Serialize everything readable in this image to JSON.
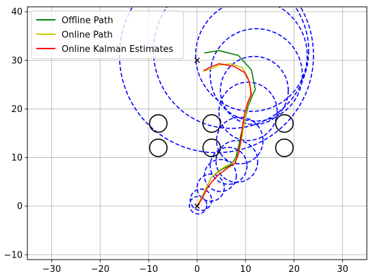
{
  "chart_data": {
    "type": "line",
    "xlim": [
      -35,
      35
    ],
    "ylim": [
      -11,
      41
    ],
    "x_ticks": [
      -30,
      -20,
      -10,
      0,
      10,
      20,
      30
    ],
    "y_ticks": [
      -10,
      0,
      10,
      20,
      30,
      40
    ],
    "x_tick_labels": [
      "−30",
      "−20",
      "−10",
      "0",
      "10",
      "20",
      "30"
    ],
    "y_tick_labels": [
      "−10",
      "0",
      "10",
      "20",
      "30",
      "40"
    ],
    "grid": true,
    "legend_position": "upper-left",
    "series": [
      {
        "name": "Offline Path",
        "color": "#008000",
        "points": [
          [
            0,
            0
          ],
          [
            1,
            2
          ],
          [
            2,
            4
          ],
          [
            3,
            6
          ],
          [
            5,
            7.5
          ],
          [
            7,
            8.5
          ],
          [
            8,
            10
          ],
          [
            8.5,
            12
          ],
          [
            9,
            14.5
          ],
          [
            9.8,
            17.5
          ],
          [
            10.5,
            20.5
          ],
          [
            11.5,
            23
          ],
          [
            12,
            24
          ],
          [
            11.2,
            28
          ],
          [
            8.5,
            31
          ],
          [
            4.5,
            32
          ],
          [
            1.5,
            31.5
          ]
        ]
      },
      {
        "name": "Online Path",
        "color": "#c8c800",
        "points": [
          [
            0,
            0
          ],
          [
            1,
            2
          ],
          [
            2,
            4
          ],
          [
            3,
            6
          ],
          [
            4.5,
            7.3
          ],
          [
            6,
            8.3
          ],
          [
            7.5,
            9
          ],
          [
            8.3,
            10.2
          ],
          [
            8.8,
            12
          ],
          [
            9.3,
            14.5
          ],
          [
            9.8,
            17.5
          ],
          [
            10.2,
            20
          ],
          [
            11,
            22.5
          ],
          [
            11,
            24
          ],
          [
            10.5,
            26.5
          ],
          [
            9.3,
            28.5
          ],
          [
            7,
            29.3
          ],
          [
            4.5,
            29
          ],
          [
            3,
            28.3
          ],
          [
            1.5,
            27.8
          ]
        ]
      },
      {
        "name": "Online Kalman Estimates",
        "color": "#ff0000",
        "points": [
          [
            0,
            0
          ],
          [
            1,
            1.5
          ],
          [
            2,
            3.5
          ],
          [
            3,
            5
          ],
          [
            4.5,
            6.5
          ],
          [
            6.5,
            8
          ],
          [
            7.8,
            8.8
          ],
          [
            8.6,
            11
          ],
          [
            9,
            13.5
          ],
          [
            9.4,
            16.5
          ],
          [
            9.8,
            19
          ],
          [
            10.5,
            21.5
          ],
          [
            11.2,
            23
          ],
          [
            10.8,
            25.5
          ],
          [
            9.8,
            27.5
          ],
          [
            7.5,
            28.8
          ],
          [
            4.5,
            29.3
          ],
          [
            2.5,
            28.5
          ],
          [
            1.3,
            27.8
          ]
        ]
      }
    ],
    "markers": [
      {
        "type": "x",
        "x": 0,
        "y": 0,
        "color": "#000000"
      },
      {
        "type": "x",
        "x": 0,
        "y": 30,
        "color": "#000000"
      }
    ],
    "obstacles": {
      "color": "#000000",
      "radius": 1.8,
      "centers": [
        [
          -8,
          17
        ],
        [
          3,
          17
        ],
        [
          18,
          17
        ],
        [
          -8,
          12
        ],
        [
          3,
          12
        ],
        [
          18,
          12
        ]
      ]
    },
    "covariance_circles": {
      "color": "#0000ff",
      "style": "dashed",
      "circles": [
        {
          "x": 0.2,
          "y": 0.2,
          "r": 1.8
        },
        {
          "x": 0.8,
          "y": 1.3,
          "r": 2.2
        },
        {
          "x": 2.8,
          "y": 3.8,
          "r": 2.8
        },
        {
          "x": 4.8,
          "y": 6.3,
          "r": 3.3
        },
        {
          "x": 6.5,
          "y": 8.3,
          "r": 3.8
        },
        {
          "x": 8.2,
          "y": 9.2,
          "r": 4.3
        },
        {
          "x": 8.8,
          "y": 13.5,
          "r": 4.8
        },
        {
          "x": 10.5,
          "y": 19.5,
          "r": 6.0
        },
        {
          "x": 11.8,
          "y": 23.8,
          "r": 7.0
        },
        {
          "x": 12.2,
          "y": 27.0,
          "r": 9.5
        },
        {
          "x": 11.2,
          "y": 31.0,
          "r": 11.5
        },
        {
          "x": 7.0,
          "y": 32.0,
          "r": 16.0
        },
        {
          "x": 4.0,
          "y": 31.0,
          "r": 20.0
        }
      ]
    }
  }
}
